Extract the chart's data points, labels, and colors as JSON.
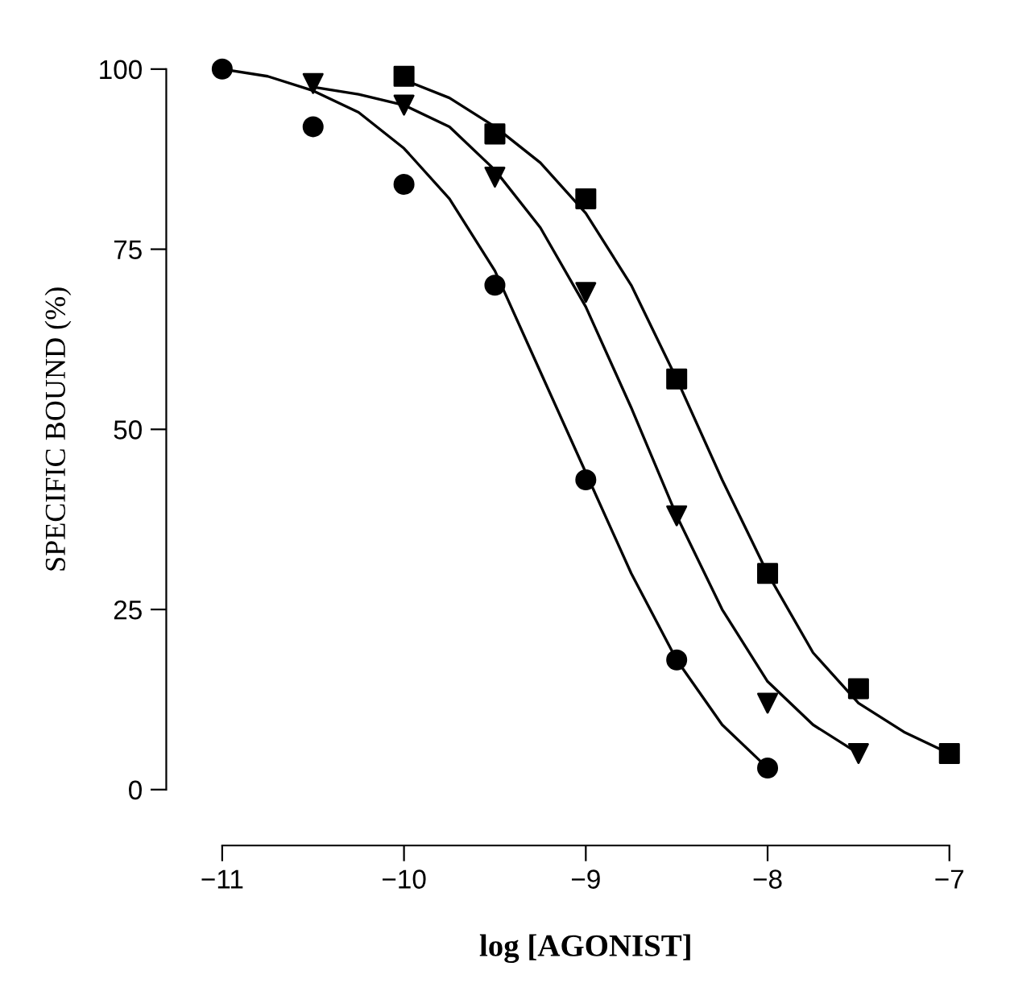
{
  "chart_data": {
    "type": "scatter",
    "xlabel": "log [AGONIST]",
    "ylabel": "SPECIFIC BOUND (%)",
    "xlim": [
      -11,
      -7
    ],
    "ylim": [
      0,
      100
    ],
    "xticks": [
      -11,
      -10,
      -9,
      -8,
      -7
    ],
    "yticks": [
      0,
      25,
      50,
      75,
      100
    ],
    "grid": false,
    "legend": false,
    "series": [
      {
        "marker": "circle",
        "color": "#000000",
        "x": [
          -11,
          -10.5,
          -10,
          -9.5,
          -9,
          -8.5,
          -8
        ],
        "values": [
          100,
          92,
          84,
          70,
          43,
          18,
          3
        ]
      },
      {
        "marker": "triangle",
        "color": "#000000",
        "x": [
          -10.5,
          -10,
          -9.5,
          -9,
          -8.5,
          -8,
          -7.5
        ],
        "values": [
          98,
          95,
          85,
          69,
          38,
          12,
          5
        ]
      },
      {
        "marker": "square",
        "color": "#000000",
        "x": [
          -10,
          -9.5,
          -9,
          -8.5,
          -8,
          -7.5,
          -7
        ],
        "values": [
          99,
          91,
          82,
          57,
          30,
          14,
          5
        ]
      },
      {
        "type": "line",
        "marker": "none",
        "line_style": "solid",
        "color": "#000000",
        "x": [
          -11,
          -10.75,
          -10.5,
          -10.25,
          -10,
          -9.75,
          -9.5,
          -9.25,
          -9,
          -8.75,
          -8.5,
          -8.25,
          -8
        ],
        "values": [
          100,
          99,
          97,
          94,
          89,
          82,
          72,
          58,
          44,
          30,
          18,
          9,
          3
        ]
      },
      {
        "type": "line",
        "marker": "none",
        "line_style": "solid",
        "color": "#000000",
        "x": [
          -10.5,
          -10.25,
          -10,
          -9.75,
          -9.5,
          -9.25,
          -9,
          -8.75,
          -8.5,
          -8.25,
          -8,
          -7.75,
          -7.5
        ],
        "values": [
          97.5,
          96.5,
          95,
          92,
          86,
          78,
          67,
          53,
          38,
          25,
          15,
          9,
          5
        ]
      },
      {
        "type": "line",
        "marker": "none",
        "line_style": "solid",
        "color": "#000000",
        "x": [
          -10,
          -9.75,
          -9.5,
          -9.25,
          -9,
          -8.75,
          -8.5,
          -8.25,
          -8,
          -7.75,
          -7.5,
          -7.25,
          -7
        ],
        "values": [
          98.5,
          96,
          92,
          87,
          80,
          70,
          57,
          43,
          30,
          19,
          12,
          8,
          5
        ]
      }
    ]
  }
}
